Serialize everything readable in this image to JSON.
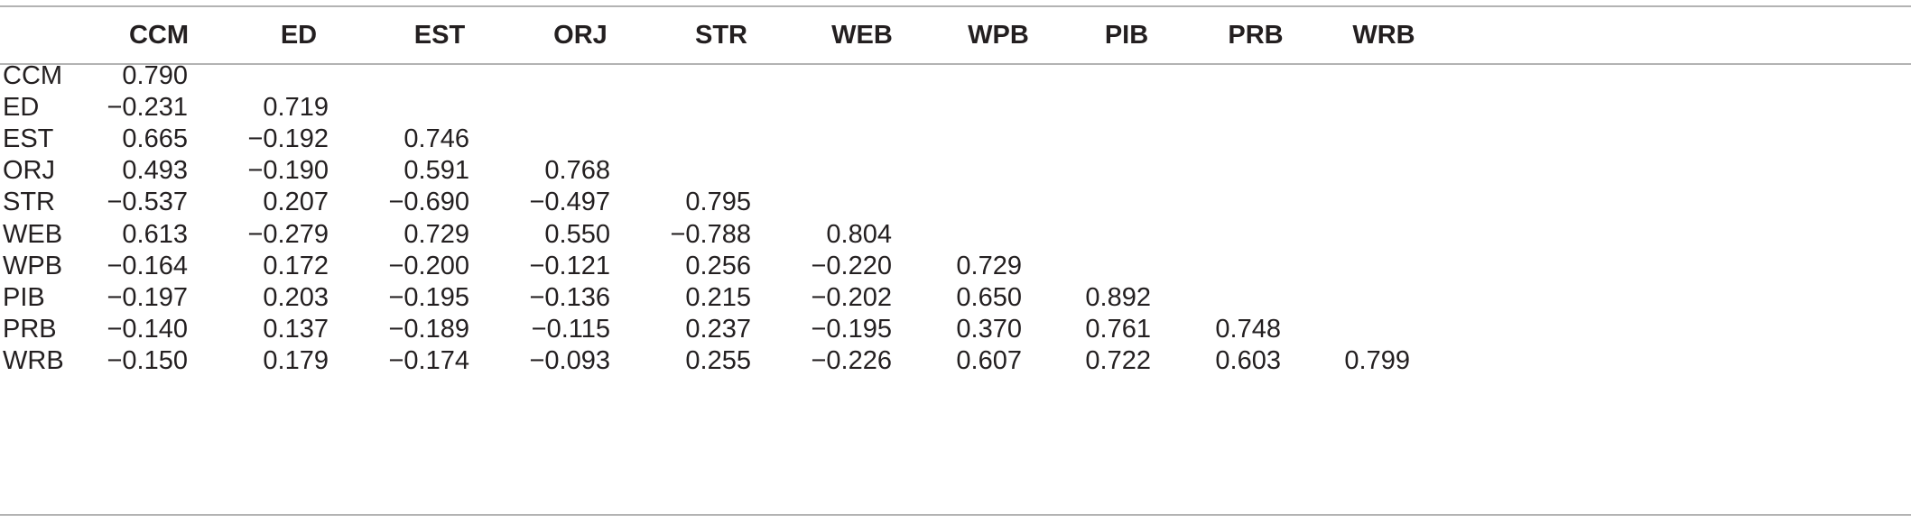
{
  "table": {
    "columns": [
      "CCM",
      "ED",
      "EST",
      "ORJ",
      "STR",
      "WEB",
      "WPB",
      "PIB",
      "PRB",
      "WRB"
    ],
    "rows": [
      {
        "label": "CCM",
        "values": [
          "0.790"
        ]
      },
      {
        "label": "ED",
        "values": [
          "−0.231",
          "0.719"
        ]
      },
      {
        "label": "EST",
        "values": [
          "0.665",
          "−0.192",
          "0.746"
        ]
      },
      {
        "label": "ORJ",
        "values": [
          "0.493",
          "−0.190",
          "0.591",
          "0.768"
        ]
      },
      {
        "label": "STR",
        "values": [
          "−0.537",
          "0.207",
          "−0.690",
          "−0.497",
          "0.795"
        ]
      },
      {
        "label": "WEB",
        "values": [
          "0.613",
          "−0.279",
          "0.729",
          "0.550",
          "−0.788",
          "0.804"
        ]
      },
      {
        "label": "WPB",
        "values": [
          "−0.164",
          "0.172",
          "−0.200",
          "−0.121",
          "0.256",
          "−0.220",
          "0.729"
        ]
      },
      {
        "label": "PIB",
        "values": [
          "−0.197",
          "0.203",
          "−0.195",
          "−0.136",
          "0.215",
          "−0.202",
          "0.650",
          "0.892"
        ]
      },
      {
        "label": "PRB",
        "values": [
          "−0.140",
          "0.137",
          "−0.189",
          "−0.115",
          "0.237",
          "−0.195",
          "0.370",
          "0.761",
          "0.748"
        ]
      },
      {
        "label": "WRB",
        "values": [
          "−0.150",
          "0.179",
          "−0.174",
          "−0.093",
          "0.255",
          "−0.226",
          "0.607",
          "0.722",
          "0.603",
          "0.799"
        ]
      }
    ]
  }
}
